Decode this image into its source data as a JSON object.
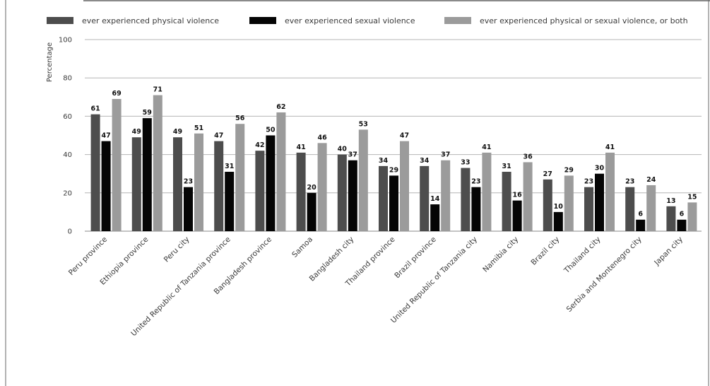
{
  "chart_data": {
    "type": "bar",
    "ylabel": "Percentage",
    "ylim": [
      0,
      100
    ],
    "yticks": [
      0,
      20,
      40,
      60,
      80,
      100
    ],
    "grid": true,
    "legend_position": "top",
    "categories": [
      "Peru province",
      "Ethiopia province",
      "Peru city",
      "United Republic of Tanzania province",
      "Bangladesh province",
      "Samoa",
      "Bangladesh city",
      "Thailand province",
      "Brazil province",
      "United Republic of Tanzania city",
      "Namibia city",
      "Brazil city",
      "Thailand city",
      "Serbia and Montenegro city",
      "Japan city"
    ],
    "series": [
      {
        "name": "ever experienced physical violence",
        "color": "#4d4d4d",
        "values": [
          61,
          49,
          49,
          47,
          42,
          41,
          40,
          34,
          34,
          33,
          31,
          27,
          23,
          23,
          13
        ]
      },
      {
        "name": "ever experienced sexual violence",
        "color": "#050505",
        "values": [
          47,
          59,
          23,
          31,
          50,
          20,
          37,
          29,
          14,
          23,
          16,
          10,
          30,
          6,
          6
        ]
      },
      {
        "name": "ever experienced physical or sexual violence, or both",
        "color": "#9b9b9b",
        "values": [
          69,
          71,
          51,
          56,
          62,
          46,
          53,
          47,
          37,
          41,
          36,
          29,
          41,
          24,
          15
        ]
      }
    ]
  }
}
